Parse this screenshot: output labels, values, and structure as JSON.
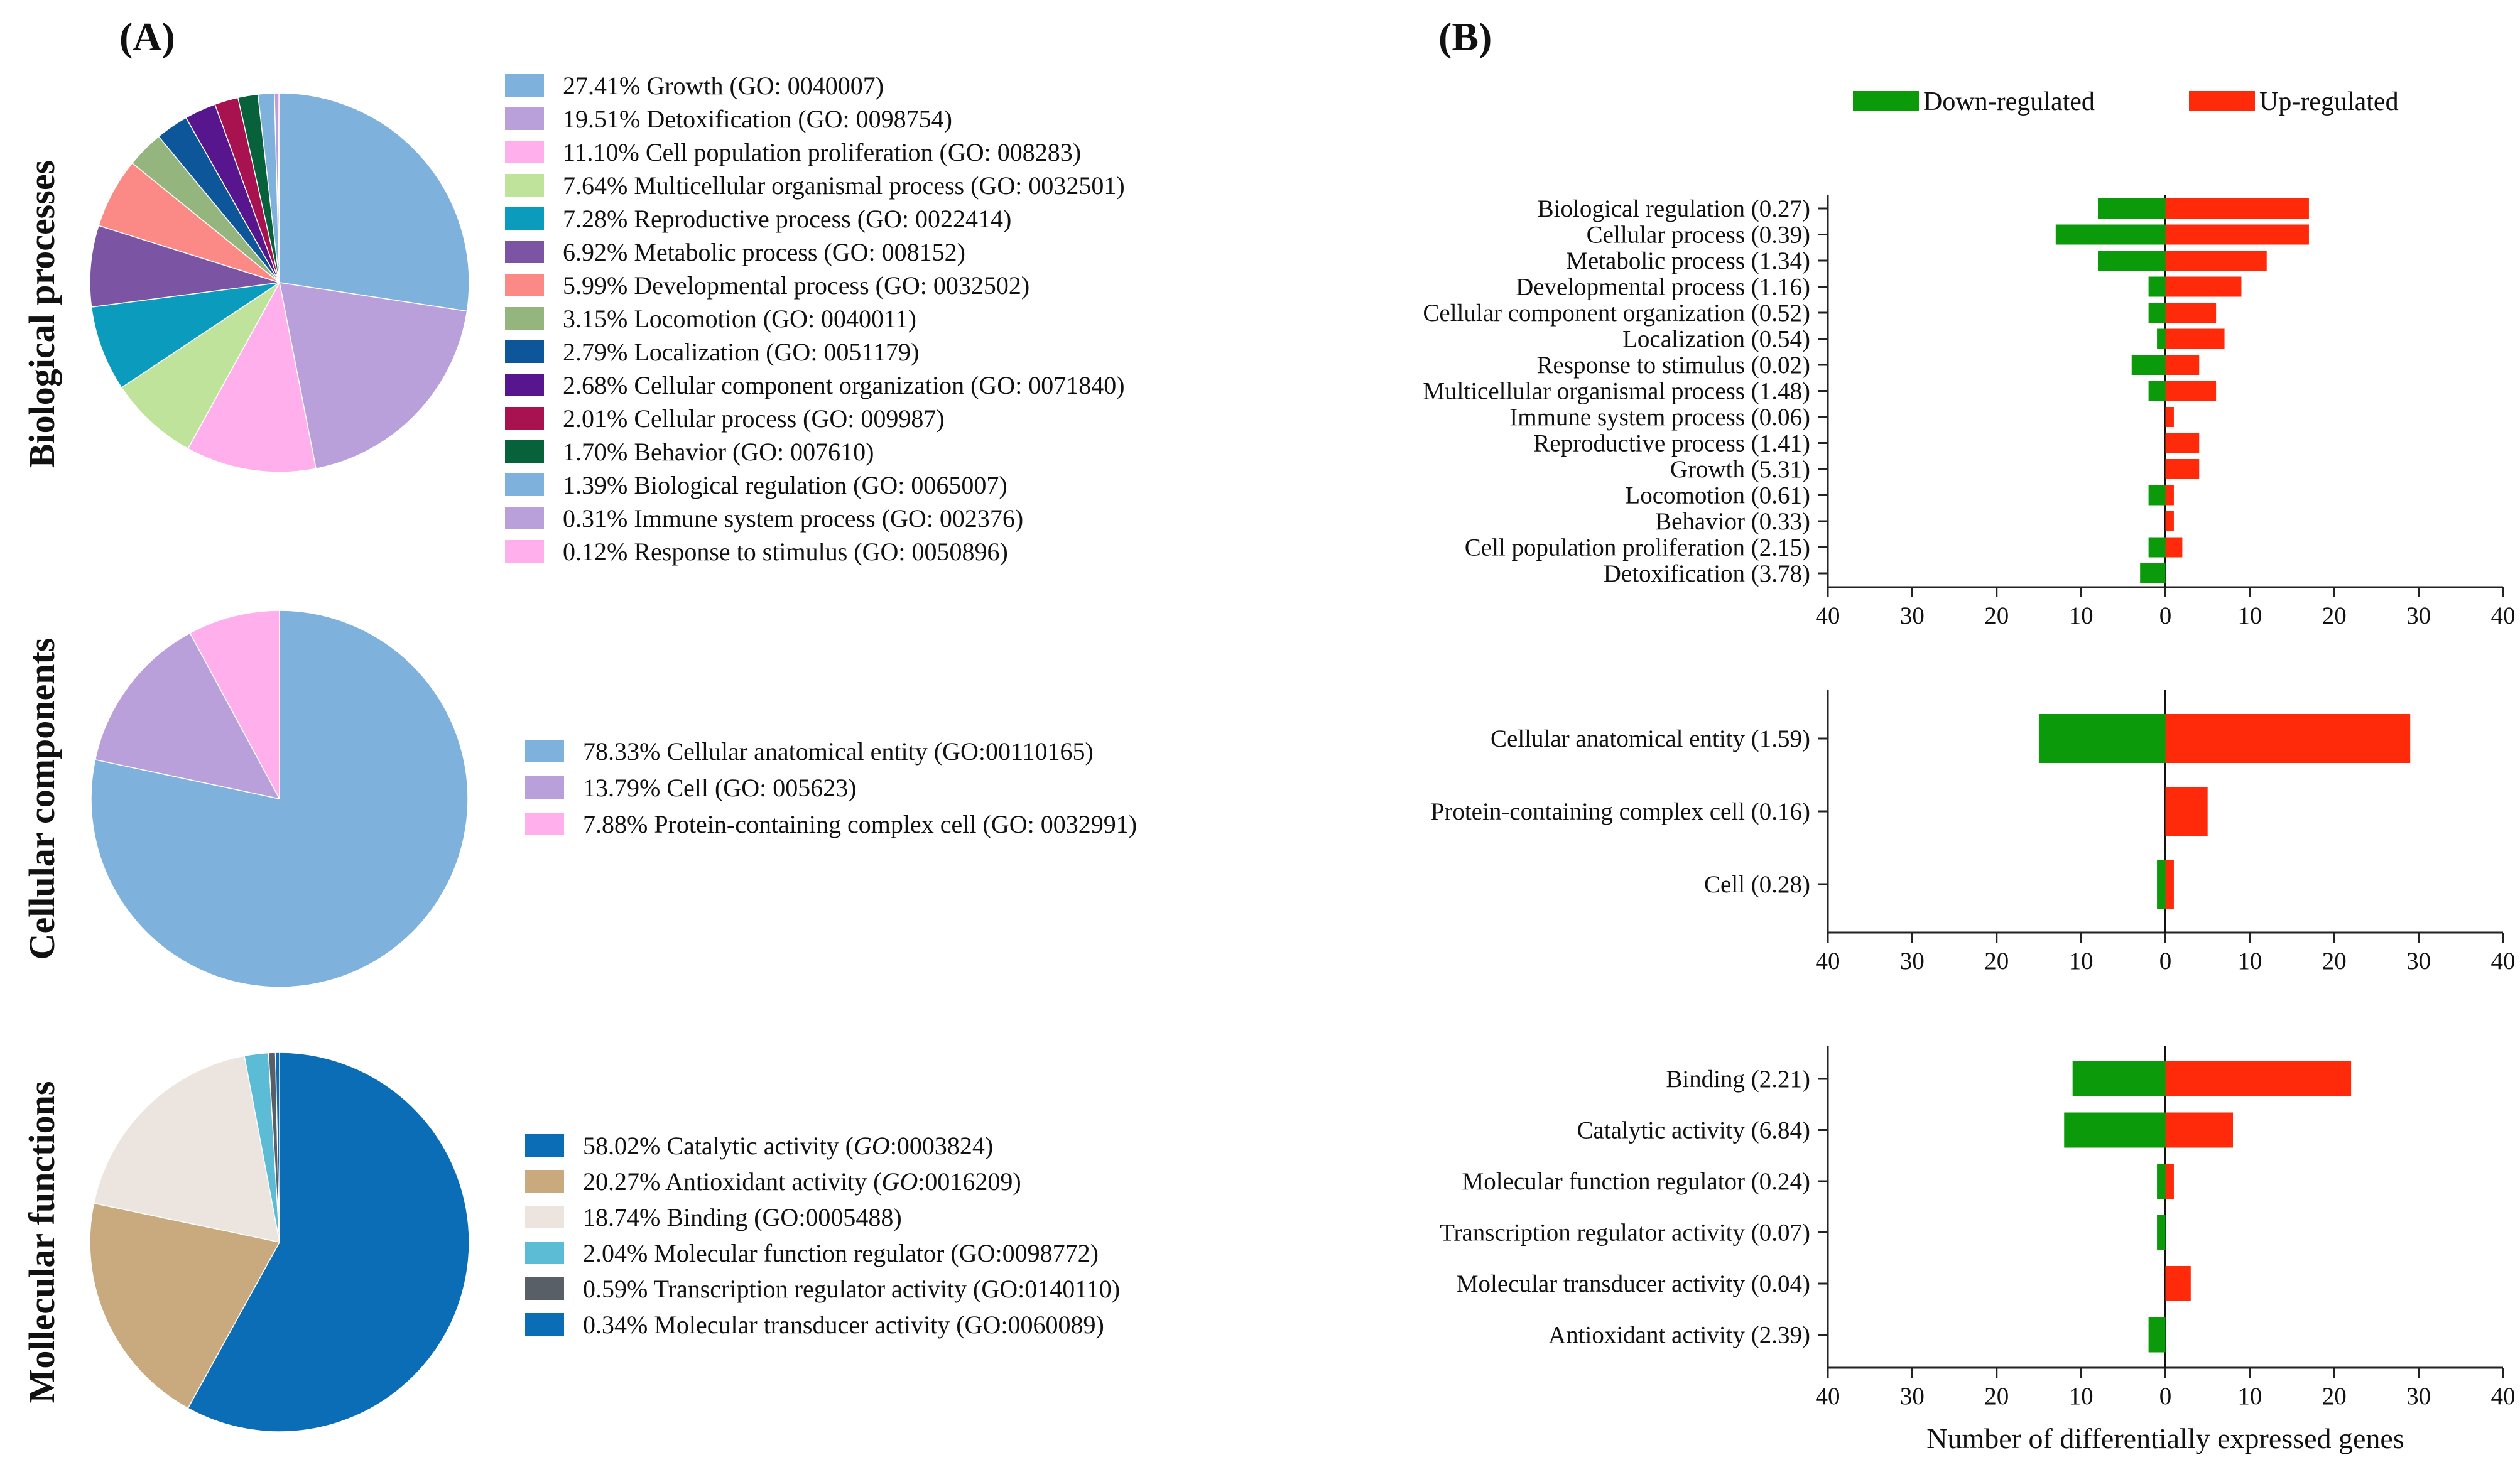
{
  "panel_a_label": "(A)",
  "panel_b_label": "(B)",
  "chart_data": [
    {
      "id": "bp_pie",
      "type": "pie",
      "title": "Biological processes",
      "slices": [
        {
          "pct": "27.41%",
          "value": 27.41,
          "label": "Growth (GO: 0040007)",
          "color": "#7fb1dd"
        },
        {
          "pct": "19.51%",
          "value": 19.51,
          "label": "Detoxification (GO: 0098754)",
          "color": "#b9a0da"
        },
        {
          "pct": "11.10%",
          "value": 11.1,
          "label": "Cell population proliferation (GO: 008283)",
          "color": "#ffb0ec"
        },
        {
          "pct": "7.64%",
          "value": 7.64,
          "label": "Multicellular organismal process (GO: 0032501)",
          "color": "#bfe39a"
        },
        {
          "pct": "7.28%",
          "value": 7.28,
          "label": "Reproductive process (GO: 0022414)",
          "color": "#0a9bbd"
        },
        {
          "pct": "6.92%",
          "value": 6.92,
          "label": "Metabolic process (GO: 008152)",
          "color": "#7b55a3"
        },
        {
          "pct": "5.99%",
          "value": 5.99,
          "label": "Developmental process (GO: 0032502)",
          "color": "#fb8a86"
        },
        {
          "pct": "3.15%",
          "value": 3.15,
          "label": "Locomotion (GO: 0040011)",
          "color": "#94b57e"
        },
        {
          "pct": "2.79%",
          "value": 2.79,
          "label": "Localization (GO: 0051179)",
          "color": "#0e569a"
        },
        {
          "pct": "2.68%",
          "value": 2.68,
          "label": "Cellular component organization (GO: 0071840)",
          "color": "#58168e"
        },
        {
          "pct": "2.01%",
          "value": 2.01,
          "label": "Cellular process (GO: 009987)",
          "color": "#a8124e"
        },
        {
          "pct": "1.70%",
          "value": 1.7,
          "label": "Behavior (GO: 007610)",
          "color": "#07613a"
        },
        {
          "pct": "1.39%",
          "value": 1.39,
          "label": "Biological regulation (GO: 0065007)",
          "color": "#7fb1dd"
        },
        {
          "pct": "0.31%",
          "value": 0.31,
          "label": "Immune system process (GO: 002376)",
          "color": "#b9a0da"
        },
        {
          "pct": "0.12%",
          "value": 0.12,
          "label": "Response to stimulus (GO: 0050896)",
          "color": "#ffb0ec"
        }
      ]
    },
    {
      "id": "cc_pie",
      "type": "pie",
      "title": "Cellular components",
      "slices": [
        {
          "pct": "78.33%",
          "value": 78.33,
          "label": "Cellular anatomical entity (GO:00110165)",
          "color": "#7fb1dd"
        },
        {
          "pct": "13.79%",
          "value": 13.79,
          "label": "Cell (GO: 005623)",
          "color": "#b9a0da"
        },
        {
          "pct": "7.88%",
          "value": 7.88,
          "label": "Protein-containing complex cell (GO: 0032991)",
          "color": "#ffb0ec"
        }
      ]
    },
    {
      "id": "mf_pie",
      "type": "pie",
      "title": "Mollecular functions",
      "slices": [
        {
          "pct": "58.02%",
          "value": 58.02,
          "label": "Catalytic activity (",
          "italic": "GO",
          "rest": ":0003824)",
          "color": "#0b6db5"
        },
        {
          "pct": "20.27%",
          "value": 20.27,
          "label": "Antioxidant activity (",
          "italic": "GO",
          "rest": ":0016209)",
          "color": "#c9a97e"
        },
        {
          "pct": "18.74%",
          "value": 18.74,
          "label": "Binding (GO:0005488)",
          "color": "#ece4de"
        },
        {
          "pct": "2.04%",
          "value": 2.04,
          "label": "Molecular function regulator (GO:0098772)",
          "color": "#5cbcd5"
        },
        {
          "pct": "0.59%",
          "value": 0.59,
          "label": "Transcription regulator activity (GO:0140110)",
          "color": "#585f66"
        },
        {
          "pct": "0.34%",
          "value": 0.34,
          "label": "Molecular transducer activity (GO:0060089)",
          "color": "#0b6db5"
        }
      ]
    },
    {
      "id": "bp_bar",
      "type": "bar",
      "orientation": "horizontal-diverging",
      "xlim": [
        -40,
        40
      ],
      "ticks": [
        "40",
        "30",
        "20",
        "10",
        "0",
        "10",
        "20",
        "30",
        "40"
      ],
      "categories": [
        "Biological regulation  (0.27)",
        "Cellular process (0.39)",
        "Metabolic process (1.34)",
        "Developmental process (1.16)",
        "Cellular component organization (0.52)",
        "Localization (0.54)",
        "Response to stimulus (0.02)",
        "Multicellular organismal process (1.48)",
        "Immune system process (0.06)",
        "Reproductive process (1.41)",
        "Growth (5.31)",
        "Locomotion (0.61)",
        "Behavior (0.33)",
        "Cell population proliferation (2.15)",
        "Detoxification (3.78)"
      ],
      "series": [
        {
          "name": "Down-regulated",
          "color": "#0a9a0a",
          "values": [
            8,
            13,
            8,
            2,
            2,
            1,
            4,
            2,
            0,
            0,
            0,
            2,
            0,
            2,
            3
          ]
        },
        {
          "name": "Up-regulated",
          "color": "#ff2a0a",
          "values": [
            17,
            17,
            12,
            9,
            6,
            7,
            4,
            6,
            1,
            4,
            4,
            1,
            1,
            2,
            0
          ]
        }
      ]
    },
    {
      "id": "cc_bar",
      "type": "bar",
      "orientation": "horizontal-diverging",
      "xlim": [
        -40,
        40
      ],
      "ticks": [
        "40",
        "30",
        "20",
        "10",
        "0",
        "10",
        "20",
        "30",
        "40"
      ],
      "categories": [
        "Cellular anatomical entity (1.59)",
        "Protein-containing complex cell (0.16)",
        "Cell (0.28)"
      ],
      "series": [
        {
          "name": "Down-regulated",
          "color": "#0a9a0a",
          "values": [
            15,
            0,
            1
          ]
        },
        {
          "name": "Up-regulated",
          "color": "#ff2a0a",
          "values": [
            29,
            5,
            1
          ]
        }
      ]
    },
    {
      "id": "mf_bar",
      "type": "bar",
      "orientation": "horizontal-diverging",
      "xlim": [
        -40,
        40
      ],
      "ticks": [
        "40",
        "30",
        "20",
        "10",
        "0",
        "10",
        "20",
        "30",
        "40"
      ],
      "xlabel": "Number of differentially expressed genes",
      "categories": [
        "Binding (2.21)",
        "Catalytic activity (6.84)",
        "Molecular function regulator (0.24)",
        "Transcription regulator activity (0.07)",
        "Molecular transducer activity (0.04)",
        "Antioxidant activity (2.39)"
      ],
      "series": [
        {
          "name": "Down-regulated",
          "color": "#0a9a0a",
          "values": [
            11,
            12,
            1,
            1,
            0,
            2
          ]
        },
        {
          "name": "Up-regulated",
          "color": "#ff2a0a",
          "values": [
            22,
            8,
            1,
            0,
            3,
            0
          ]
        }
      ]
    }
  ],
  "bar_legend": [
    {
      "name": "Down-regulated",
      "color": "#0a9a0a"
    },
    {
      "name": "Up-regulated",
      "color": "#ff2a0a"
    }
  ]
}
